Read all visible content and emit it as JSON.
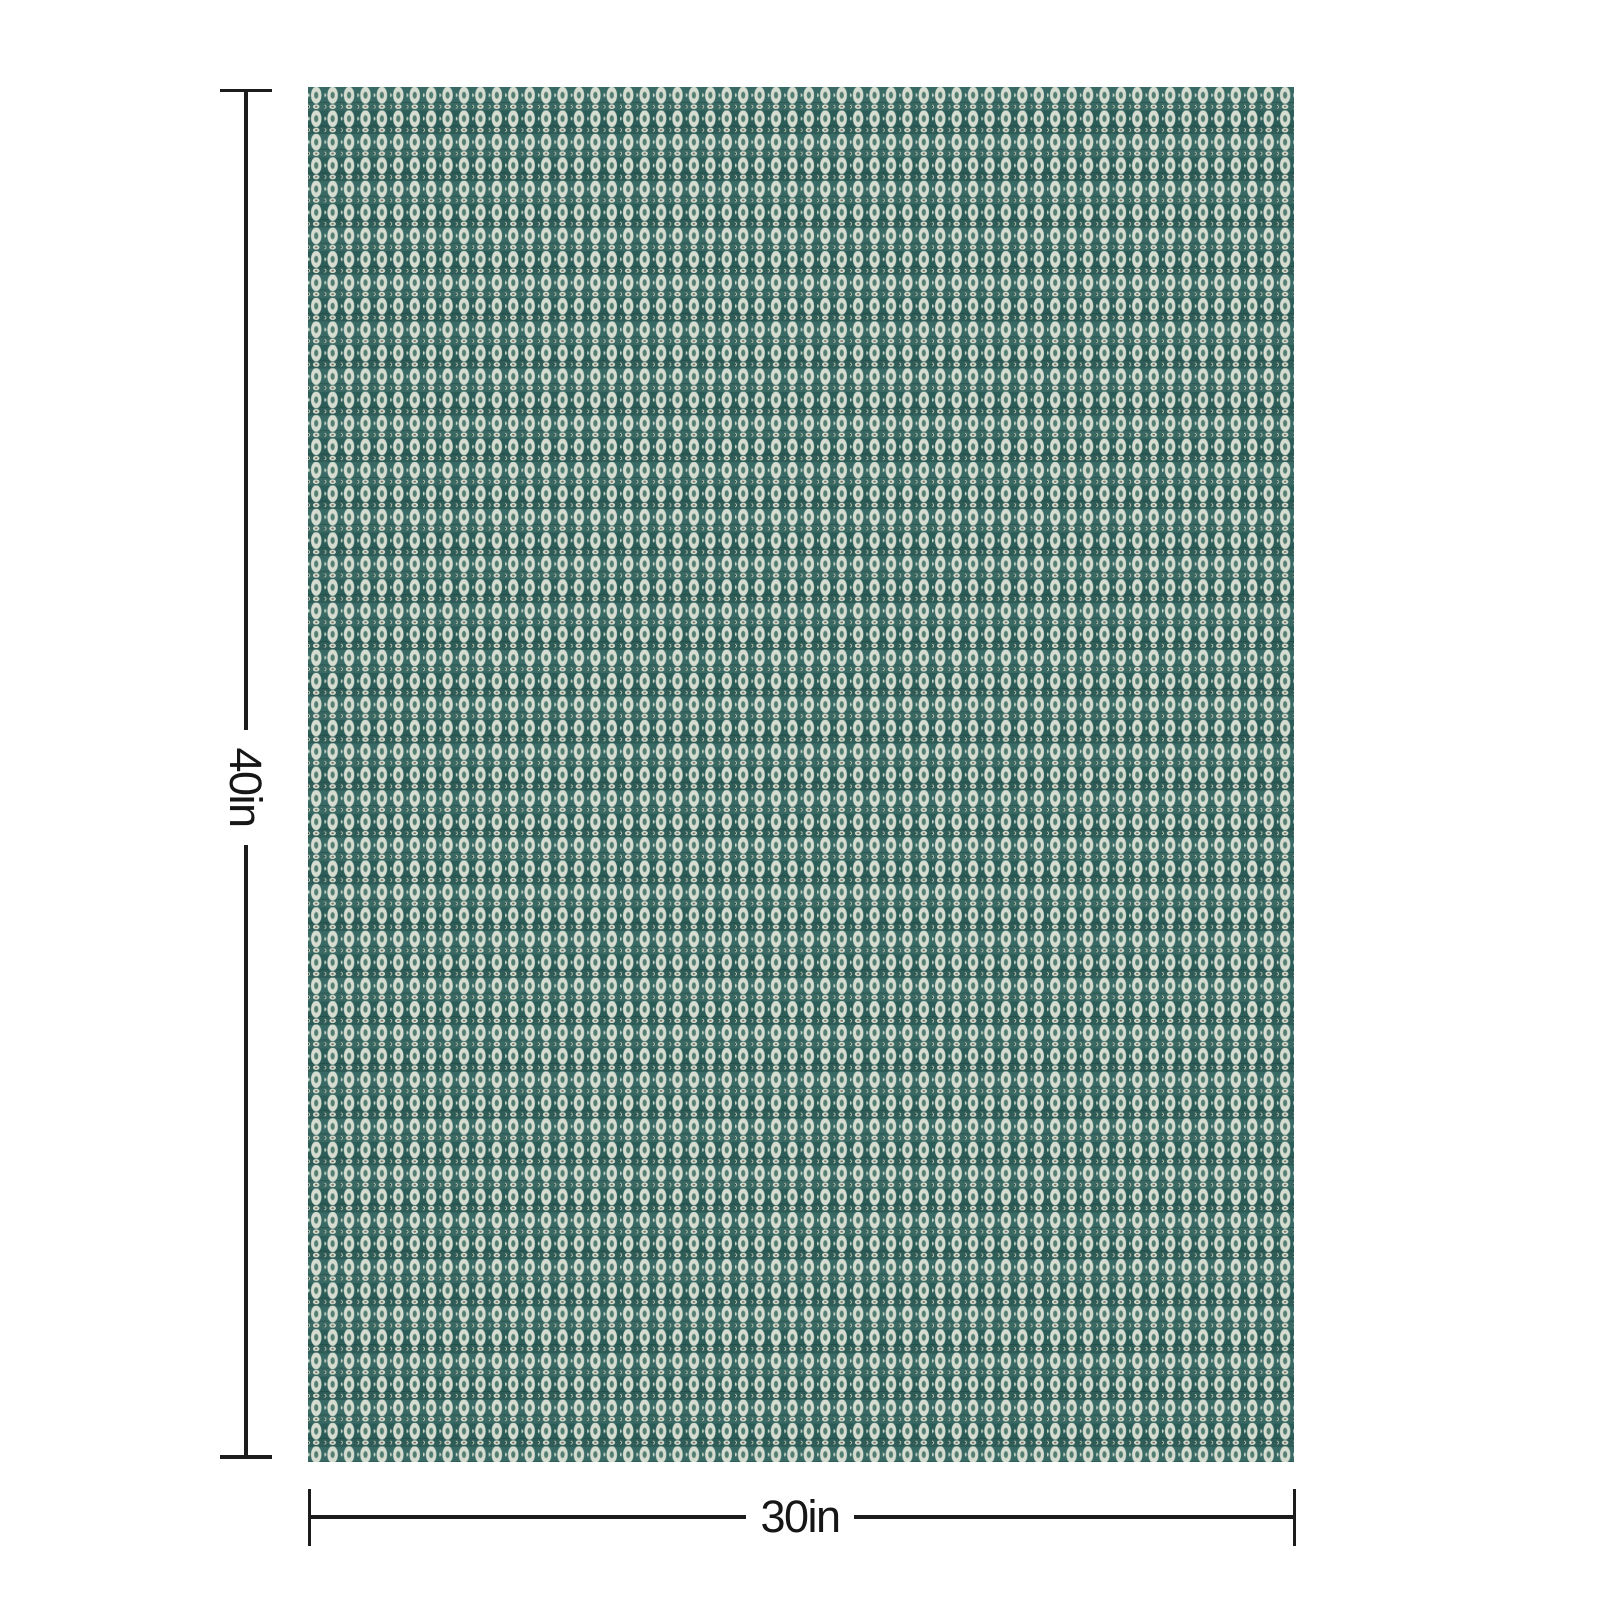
{
  "page": {
    "background_color": "#ffffff"
  },
  "product_swatch": {
    "description": "fabric swatch with repeating teal oval and diamond lattice pattern",
    "pattern_colors": {
      "base_color": "#2e615c",
      "light_color": "#d6ddd0",
      "core_color": "#557e72",
      "dash_color": "#7d7565",
      "dot_color": "#1f403c",
      "corner_color": "#ccd7c9"
    }
  },
  "dimension_annotations": {
    "line_color": "#1c1c1c",
    "height": {
      "label": "40in"
    },
    "width": {
      "label": "30in"
    }
  }
}
